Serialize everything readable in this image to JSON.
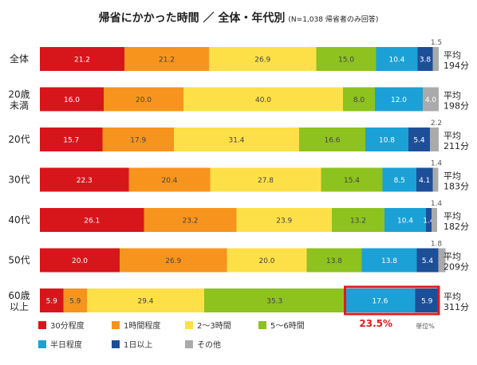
{
  "chart_data": {
    "type": "bar",
    "stacked": true,
    "orientation": "horizontal",
    "percent": true,
    "title": "帰省にかかった時間 ／ 全体・年代別",
    "subtitle": "(N=1,038 帰省者のみ回答)",
    "unit_label": "単位%",
    "categories": [
      "全体",
      "20歳\n未満",
      "20代",
      "30代",
      "40代",
      "50代",
      "60歳\n以上"
    ],
    "series": [
      {
        "name": "30分程度",
        "color": "#d7161c",
        "values": [
          21.2,
          16.0,
          15.7,
          22.3,
          26.1,
          20.0,
          5.9
        ]
      },
      {
        "name": "1時間程度",
        "color": "#f7941d",
        "values": [
          21.2,
          20.0,
          17.9,
          20.4,
          23.2,
          26.9,
          5.9
        ]
      },
      {
        "name": "2〜3時間",
        "color": "#fde047",
        "values": [
          26.9,
          40.0,
          31.4,
          27.8,
          23.9,
          20.0,
          29.4
        ]
      },
      {
        "name": "5〜6時間",
        "color": "#8dc21f",
        "values": [
          15.0,
          8.0,
          16.6,
          15.4,
          13.2,
          13.8,
          35.3
        ]
      },
      {
        "name": "半日程度",
        "color": "#1ba1d6",
        "values": [
          10.4,
          12.0,
          10.8,
          8.5,
          10.4,
          13.8,
          17.6
        ]
      },
      {
        "name": "1日以上",
        "color": "#1d4f99",
        "values": [
          3.8,
          0.0,
          5.4,
          4.1,
          1.4,
          5.4,
          5.9
        ]
      },
      {
        "name": "その他",
        "color": "#aaaaaa",
        "values": [
          1.5,
          4.0,
          2.2,
          1.4,
          1.4,
          1.8,
          0.0
        ]
      }
    ],
    "averages": [
      "平均\n194分",
      "平均\n198分",
      "平均\n211分",
      "平均\n183分",
      "平均\n182分",
      "平均\n209分",
      "平均\n311分"
    ],
    "outside_labels": [
      {
        "row": 0,
        "text": "1.5"
      },
      {
        "row": 2,
        "text": "2.2"
      },
      {
        "row": 3,
        "text": "1.4"
      },
      {
        "row": 4,
        "text": "1.4"
      },
      {
        "row": 5,
        "text": "1.8"
      }
    ],
    "highlight": {
      "row": 6,
      "series_from": 4,
      "series_to": 5,
      "label": "23.5%"
    },
    "legend_position": "bottom"
  }
}
